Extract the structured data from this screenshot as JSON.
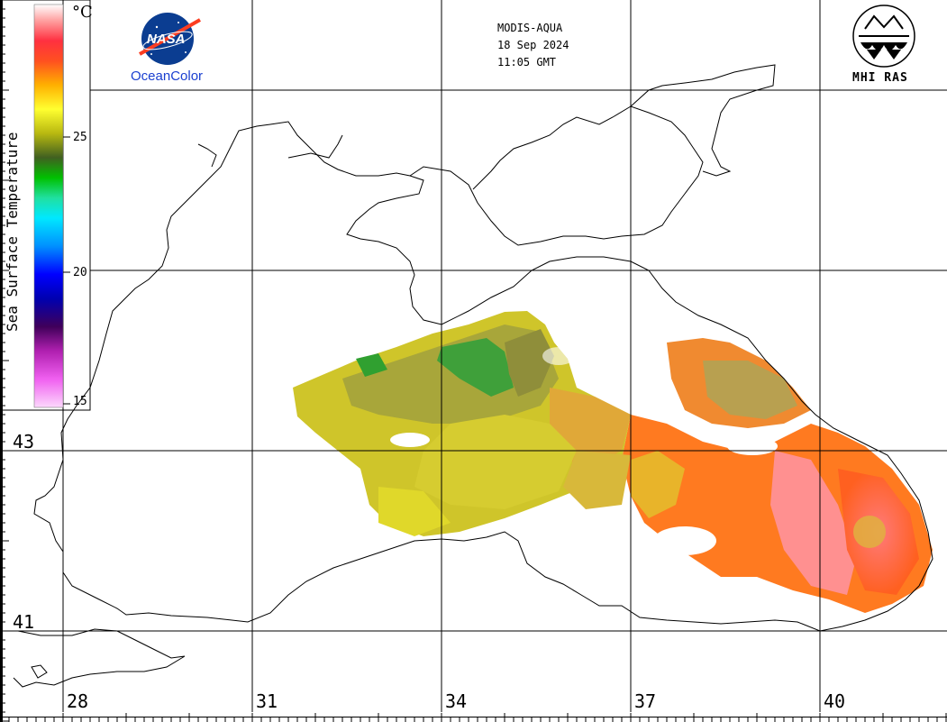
{
  "header": {
    "sensor": "MODIS-AQUA",
    "date": "18 Sep 2024",
    "time": "11:05 GMT"
  },
  "logos": {
    "nasa_text": "NASA",
    "oceancolor_label": "OceanColor",
    "mhi_label": "MHI RAS"
  },
  "colorbar": {
    "title": "Sea Surface Temperature",
    "unit": "°C",
    "ticks": [
      "15",
      "20",
      "25"
    ],
    "range": [
      15,
      28
    ],
    "colors": [
      "#f8d0f8",
      "#e040e0",
      "#6a0a6a",
      "#10006a",
      "#0000ff",
      "#00a0ff",
      "#00ffff",
      "#20e080",
      "#00a000",
      "#406010",
      "#e0e000",
      "#ffff20",
      "#ffa000",
      "#ff4030",
      "#ff9090",
      "#ffffff"
    ]
  },
  "grid": {
    "lon_labels": [
      "28",
      "31",
      "34",
      "37",
      "40"
    ],
    "lat_labels": [
      "43",
      "41"
    ]
  },
  "accent": {
    "warm": "#ff6a20",
    "mid": "#d8d020",
    "cool": "#30a030",
    "coast": "#000000"
  }
}
